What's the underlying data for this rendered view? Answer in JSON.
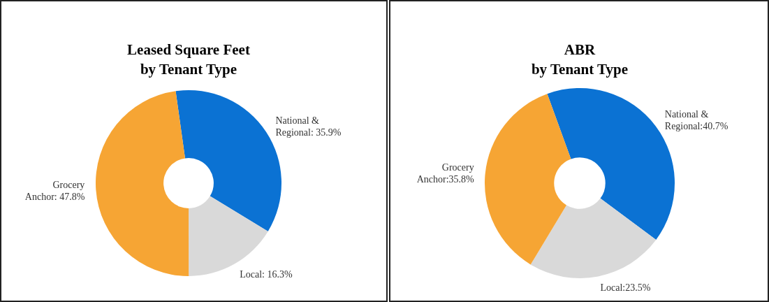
{
  "chart_data": [
    {
      "type": "donut",
      "title": "Leased Square Feet\nby Tenant Type",
      "categories": [
        "National & Regional",
        "Local",
        "Grocery Anchor"
      ],
      "values": [
        35.9,
        16.3,
        47.8
      ],
      "colors": [
        "#0b72d3",
        "#d9d9d9",
        "#f6a534"
      ],
      "value_labels": [
        "35.9%",
        "16.3%",
        "47.8%"
      ]
    },
    {
      "type": "donut",
      "title": "ABR\nby Tenant Type",
      "categories": [
        "National & Regional",
        "Local",
        "Grocery Anchor"
      ],
      "values": [
        40.7,
        23.5,
        35.8
      ],
      "colors": [
        "#0b72d3",
        "#d9d9d9",
        "#f6a534"
      ],
      "value_labels": [
        "40.7%",
        "23.5%",
        "35.8%"
      ]
    }
  ]
}
